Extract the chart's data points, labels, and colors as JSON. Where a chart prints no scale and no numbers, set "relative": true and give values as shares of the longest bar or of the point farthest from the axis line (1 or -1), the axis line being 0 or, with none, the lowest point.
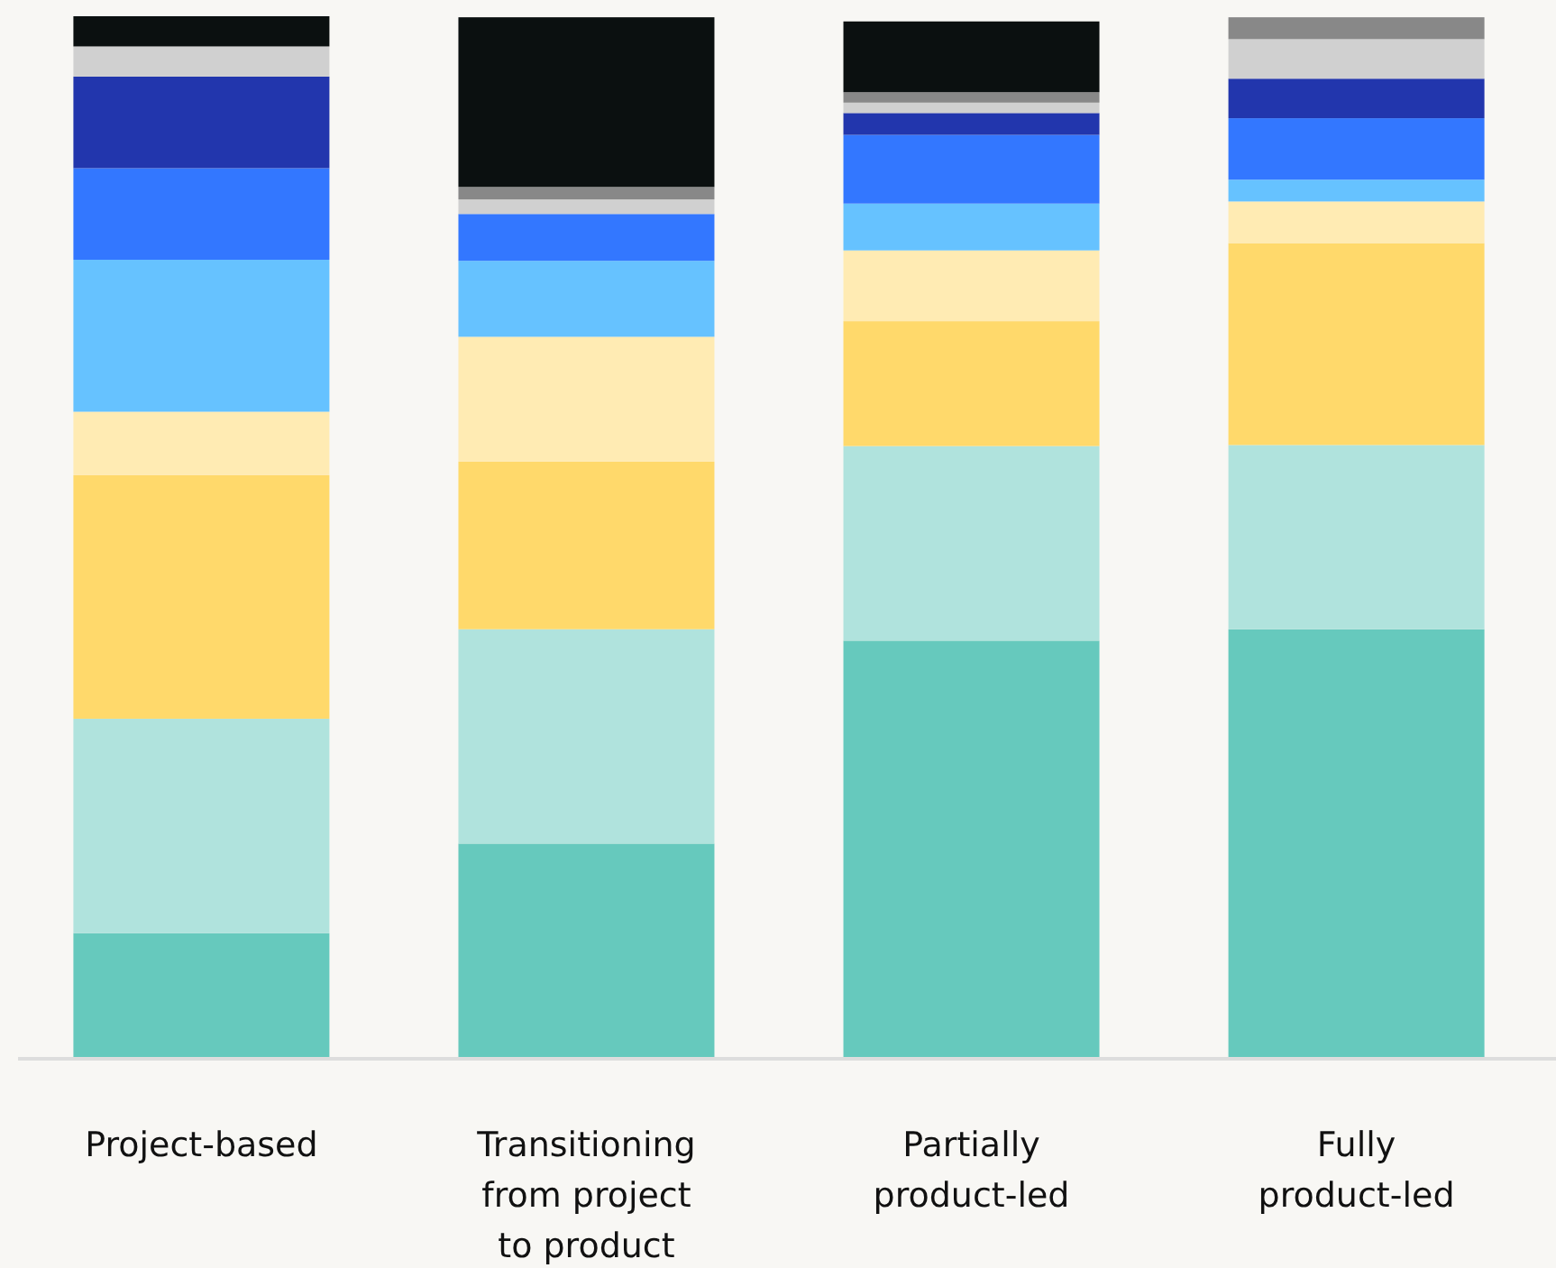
{
  "chart_data": {
    "type": "bar",
    "stacked": true,
    "relative": true,
    "categories": [
      "Project-based",
      "Transitioning from project to product",
      "Partially product-led",
      "Fully product-led"
    ],
    "series": [
      {
        "color": "#66c9bd",
        "values": [
          0.119,
          0.205,
          0.4,
          0.411
        ]
      },
      {
        "color": "#b0e3dd",
        "values": [
          0.206,
          0.206,
          0.187,
          0.177
        ]
      },
      {
        "color": "#ffd96b",
        "values": [
          0.234,
          0.161,
          0.12,
          0.194
        ]
      },
      {
        "color": "#ffebb3",
        "values": [
          0.061,
          0.12,
          0.068,
          0.04
        ]
      },
      {
        "color": "#66c2ff",
        "values": [
          0.146,
          0.073,
          0.045,
          0.021
        ]
      },
      {
        "color": "#3377ff",
        "values": [
          0.088,
          0.045,
          0.066,
          0.059
        ]
      },
      {
        "color": "#2236ad",
        "values": [
          0.088,
          0,
          0.021,
          0.038
        ]
      },
      {
        "color": "#d0d0d0",
        "values": [
          0.029,
          0.014,
          0.01,
          0.038
        ]
      },
      {
        "color": "#888888",
        "values": [
          0,
          0.012,
          0.01,
          0.021
        ]
      },
      {
        "color": "#0b1010",
        "values": [
          0.029,
          0.163,
          0.068,
          0
        ]
      }
    ]
  }
}
